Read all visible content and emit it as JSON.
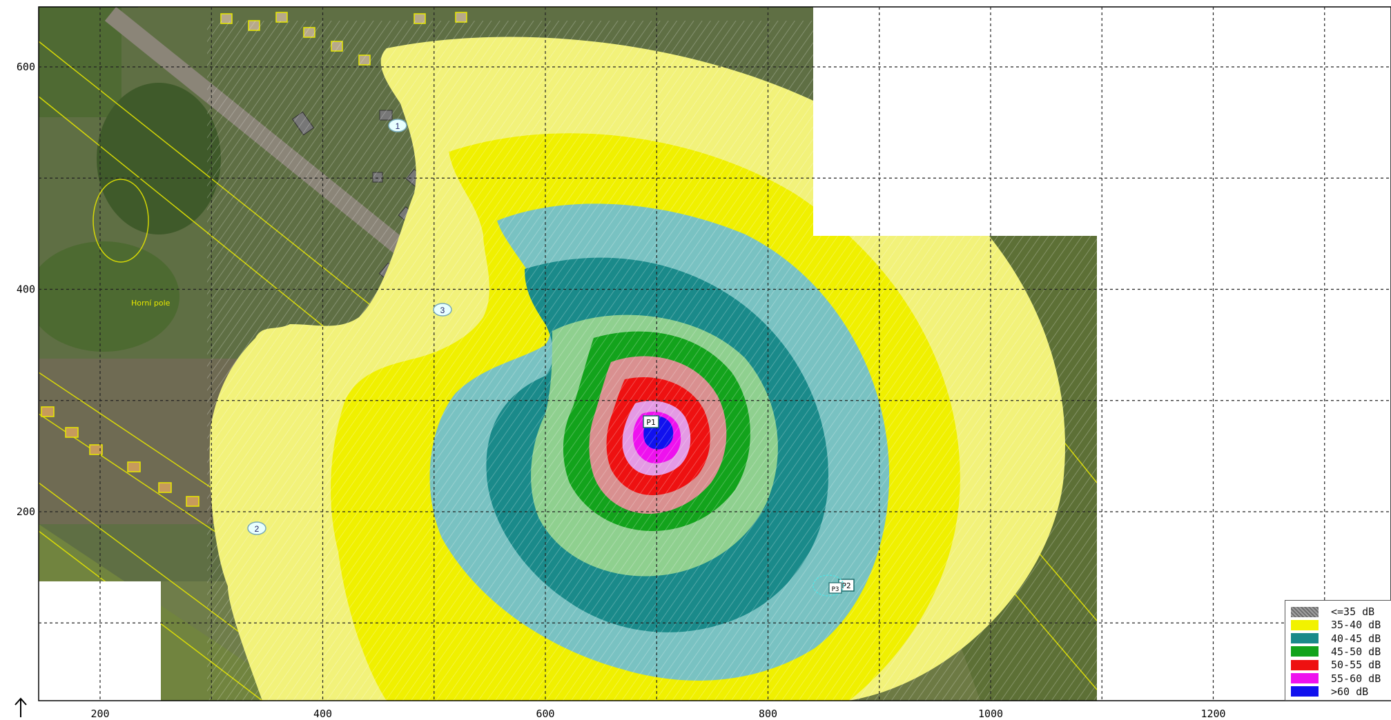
{
  "map": {
    "x_ticks": [
      {
        "value": "200",
        "x": 200
      },
      {
        "value": "400",
        "x": 400
      },
      {
        "value": "600",
        "x": 600
      },
      {
        "value": "800",
        "x": 800
      },
      {
        "value": "1000",
        "x": 1000
      },
      {
        "value": "1200",
        "x": 1200
      }
    ],
    "y_ticks": [
      {
        "value": "600",
        "y": 600
      },
      {
        "value": "400",
        "y": 400
      },
      {
        "value": "200",
        "y": 200
      }
    ],
    "place_label": "Horní pole",
    "points": [
      {
        "label": "1"
      },
      {
        "label": "2"
      },
      {
        "label": "3"
      }
    ],
    "sources": [
      {
        "label": "P1"
      },
      {
        "label": "P2"
      },
      {
        "label": "P3"
      }
    ]
  },
  "legend": {
    "items": [
      {
        "label": "<=35 dB",
        "color": "#6e6e6e",
        "hatched": true
      },
      {
        "label": "35-40 dB",
        "color": "#f2f200"
      },
      {
        "label": "40-45 dB",
        "color": "#1a8a8a"
      },
      {
        "label": "45-50 dB",
        "color": "#13a31c"
      },
      {
        "label": "50-55 dB",
        "color": "#ee1111"
      },
      {
        "label": "55-60 dB",
        "color": "#ee11ee"
      },
      {
        "label": ">60 dB",
        "color": "#1111ee"
      }
    ]
  },
  "north_arrow": "north-arrow-icon"
}
